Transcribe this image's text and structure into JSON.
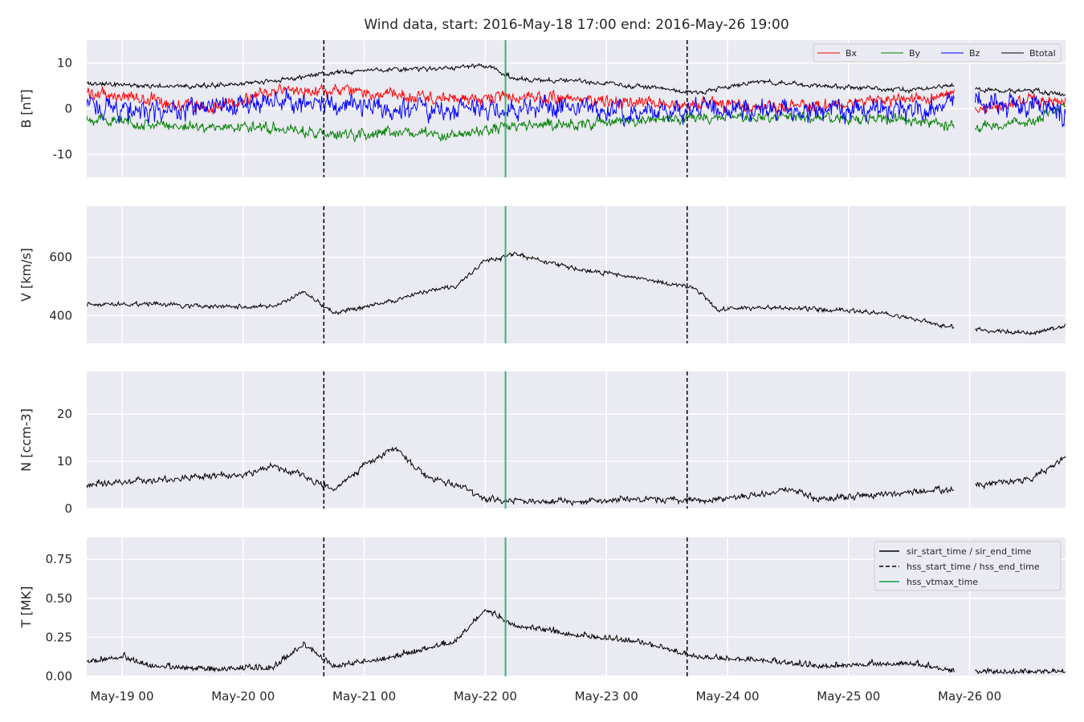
{
  "figure": {
    "title": "Wind data, start: 2016-May-18 17:00  end: 2016-May-26 19:00",
    "background": "#ffffff",
    "axes_facecolor": "#eaeaf2",
    "grid_color": "#ffffff"
  },
  "chart_data": [
    {
      "type": "line",
      "id": "b",
      "ylabel": "B [nT]",
      "ylim": [
        -15,
        15
      ],
      "yticks": [
        -10,
        0,
        10
      ],
      "xlim": [
        "2016-05-18T17:00",
        "2016-05-26T19:00"
      ],
      "grid": true,
      "gap": [
        "2016-05-25T21:00",
        "2016-05-26T01:00"
      ],
      "series": [
        {
          "name": "Bx",
          "color": "#ff0000",
          "base": [
            [
              "2016-05-18T17:00",
              3.5
            ],
            [
              "2016-05-19T06:00",
              2.0
            ],
            [
              "2016-05-19T18:00",
              0.0
            ],
            [
              "2016-05-20T06:00",
              4.0
            ],
            [
              "2016-05-20T18:00",
              4.0
            ],
            [
              "2016-05-21T06:00",
              3.0
            ],
            [
              "2016-05-21T18:00",
              2.0
            ],
            [
              "2016-05-22T06:00",
              2.5
            ],
            [
              "2016-05-22T18:00",
              2.0
            ],
            [
              "2016-05-23T06:00",
              1.5
            ],
            [
              "2016-05-23T18:00",
              1.0
            ],
            [
              "2016-05-24T06:00",
              0.5
            ],
            [
              "2016-05-24T18:00",
              0.5
            ],
            [
              "2016-05-25T12:00",
              2.0
            ],
            [
              "2016-05-25T21:00",
              3.0
            ],
            [
              "2016-05-26T01:00",
              -0.5
            ],
            [
              "2016-05-26T12:00",
              2.0
            ],
            [
              "2016-05-26T19:00",
              1.5
            ]
          ],
          "noise": 1.6
        },
        {
          "name": "By",
          "color": "#008000",
          "base": [
            [
              "2016-05-18T17:00",
              -2.0
            ],
            [
              "2016-05-19T06:00",
              -3.5
            ],
            [
              "2016-05-19T18:00",
              -4.0
            ],
            [
              "2016-05-20T06:00",
              -4.0
            ],
            [
              "2016-05-20T18:00",
              -6.0
            ],
            [
              "2016-05-21T06:00",
              -5.0
            ],
            [
              "2016-05-21T18:00",
              -6.0
            ],
            [
              "2016-05-22T06:00",
              -3.5
            ],
            [
              "2016-05-22T18:00",
              -3.5
            ],
            [
              "2016-05-23T06:00",
              -2.5
            ],
            [
              "2016-05-23T18:00",
              -2.0
            ],
            [
              "2016-05-24T06:00",
              -2.0
            ],
            [
              "2016-05-24T18:00",
              -2.0
            ],
            [
              "2016-05-25T12:00",
              -2.5
            ],
            [
              "2016-05-25T21:00",
              -3.5
            ],
            [
              "2016-05-26T01:00",
              -4.0
            ],
            [
              "2016-05-26T12:00",
              -3.0
            ],
            [
              "2016-05-26T19:00",
              1.0
            ]
          ],
          "noise": 1.4
        },
        {
          "name": "Bz",
          "color": "#0000ff",
          "base": [
            [
              "2016-05-18T17:00",
              1.0
            ],
            [
              "2016-05-19T06:00",
              -1.0
            ],
            [
              "2016-05-19T18:00",
              0.0
            ],
            [
              "2016-05-20T06:00",
              2.0
            ],
            [
              "2016-05-20T18:00",
              1.0
            ],
            [
              "2016-05-21T06:00",
              0.0
            ],
            [
              "2016-05-21T18:00",
              0.0
            ],
            [
              "2016-05-22T06:00",
              0.0
            ],
            [
              "2016-05-22T18:00",
              0.5
            ],
            [
              "2016-05-23T06:00",
              -1.0
            ],
            [
              "2016-05-23T18:00",
              0.0
            ],
            [
              "2016-05-24T06:00",
              0.0
            ],
            [
              "2016-05-24T18:00",
              -0.5
            ],
            [
              "2016-05-25T12:00",
              0.0
            ],
            [
              "2016-05-25T21:00",
              0.5
            ],
            [
              "2016-05-26T01:00",
              1.0
            ],
            [
              "2016-05-26T12:00",
              1.0
            ],
            [
              "2016-05-26T19:00",
              -1.0
            ]
          ],
          "noise": 2.8
        },
        {
          "name": "Btotal",
          "color": "#000000",
          "base": [
            [
              "2016-05-18T17:00",
              5.5
            ],
            [
              "2016-05-19T06:00",
              5.0
            ],
            [
              "2016-05-19T18:00",
              5.0
            ],
            [
              "2016-05-20T06:00",
              6.0
            ],
            [
              "2016-05-20T18:00",
              8.0
            ],
            [
              "2016-05-21T06:00",
              8.5
            ],
            [
              "2016-05-21T18:00",
              9.0
            ],
            [
              "2016-05-22T00:00",
              9.5
            ],
            [
              "2016-05-22T06:00",
              6.5
            ],
            [
              "2016-05-22T18:00",
              6.0
            ],
            [
              "2016-05-23T06:00",
              5.0
            ],
            [
              "2016-05-23T18:00",
              3.5
            ],
            [
              "2016-05-24T06:00",
              6.0
            ],
            [
              "2016-05-24T18:00",
              5.0
            ],
            [
              "2016-05-25T12:00",
              4.0
            ],
            [
              "2016-05-25T21:00",
              5.0
            ],
            [
              "2016-05-26T01:00",
              4.0
            ],
            [
              "2016-05-26T12:00",
              4.0
            ],
            [
              "2016-05-26T19:00",
              3.0
            ]
          ],
          "noise": 0.6
        }
      ],
      "legend": {
        "placement": "upper-right",
        "entries": [
          "Bx",
          "By",
          "Bz",
          "Btotal"
        ]
      }
    },
    {
      "type": "line",
      "id": "v",
      "ylabel": "V [km/s]",
      "ylim": [
        305,
        775
      ],
      "yticks": [
        400,
        600
      ],
      "grid": true,
      "gap": [
        "2016-05-25T21:00",
        "2016-05-26T01:00"
      ],
      "series": [
        {
          "name": "V",
          "color": "#000000",
          "base": [
            [
              "2016-05-18T17:00",
              440
            ],
            [
              "2016-05-19T06:00",
              440
            ],
            [
              "2016-05-19T18:00",
              430
            ],
            [
              "2016-05-20T06:00",
              430
            ],
            [
              "2016-05-20T12:00",
              480
            ],
            [
              "2016-05-20T18:00",
              410
            ],
            [
              "2016-05-21T00:00",
              430
            ],
            [
              "2016-05-21T06:00",
              450
            ],
            [
              "2016-05-21T12:00",
              485
            ],
            [
              "2016-05-21T18:00",
              495
            ],
            [
              "2016-05-22T00:00",
              590
            ],
            [
              "2016-05-22T06:00",
              610
            ],
            [
              "2016-05-22T12:00",
              585
            ],
            [
              "2016-05-22T18:00",
              560
            ],
            [
              "2016-05-23T06:00",
              530
            ],
            [
              "2016-05-23T18:00",
              490
            ],
            [
              "2016-05-23T22:00",
              420
            ],
            [
              "2016-05-24T06:00",
              430
            ],
            [
              "2016-05-24T18:00",
              420
            ],
            [
              "2016-05-25T06:00",
              410
            ],
            [
              "2016-05-25T12:00",
              390
            ],
            [
              "2016-05-25T21:00",
              360
            ],
            [
              "2016-05-26T01:00",
              350
            ],
            [
              "2016-05-26T12:00",
              340
            ],
            [
              "2016-05-26T19:00",
              365
            ]
          ],
          "noise": 9
        }
      ]
    },
    {
      "type": "line",
      "id": "n",
      "ylabel": "N [ccm-3]",
      "ylim": [
        0,
        29
      ],
      "yticks": [
        0,
        10,
        20
      ],
      "grid": true,
      "gap": [
        "2016-05-25T21:00",
        "2016-05-26T01:00"
      ],
      "series": [
        {
          "name": "N",
          "color": "#000000",
          "base": [
            [
              "2016-05-18T17:00",
              5
            ],
            [
              "2016-05-19T06:00",
              6
            ],
            [
              "2016-05-19T18:00",
              7
            ],
            [
              "2016-05-20T00:00",
              7
            ],
            [
              "2016-05-20T06:00",
              9
            ],
            [
              "2016-05-20T12:00",
              7
            ],
            [
              "2016-05-20T18:00",
              4
            ],
            [
              "2016-05-21T00:00",
              9
            ],
            [
              "2016-05-21T06:00",
              13
            ],
            [
              "2016-05-21T12:00",
              7
            ],
            [
              "2016-05-21T18:00",
              5
            ],
            [
              "2016-05-22T00:00",
              2
            ],
            [
              "2016-05-22T12:00",
              1.5
            ],
            [
              "2016-05-23T06:00",
              2
            ],
            [
              "2016-05-23T18:00",
              1.5
            ],
            [
              "2016-05-24T06:00",
              3
            ],
            [
              "2016-05-24T12:00",
              4
            ],
            [
              "2016-05-24T18:00",
              2
            ],
            [
              "2016-05-25T12:00",
              3.5
            ],
            [
              "2016-05-25T21:00",
              4
            ],
            [
              "2016-05-26T01:00",
              5
            ],
            [
              "2016-05-26T12:00",
              6
            ],
            [
              "2016-05-26T19:00",
              11
            ]
          ],
          "noise": 0.8
        }
      ]
    },
    {
      "type": "line",
      "id": "t",
      "ylabel": "T [MK]",
      "ylim": [
        0,
        0.89
      ],
      "yticks": [
        0.0,
        0.25,
        0.5,
        0.75
      ],
      "grid": true,
      "gap": [
        "2016-05-25T21:00",
        "2016-05-26T01:00"
      ],
      "series": [
        {
          "name": "T",
          "color": "#000000",
          "base": [
            [
              "2016-05-18T17:00",
              0.09
            ],
            [
              "2016-05-19T00:00",
              0.12
            ],
            [
              "2016-05-19T06:00",
              0.06
            ],
            [
              "2016-05-19T18:00",
              0.04
            ],
            [
              "2016-05-20T06:00",
              0.05
            ],
            [
              "2016-05-20T12:00",
              0.2
            ],
            [
              "2016-05-20T18:00",
              0.06
            ],
            [
              "2016-05-21T06:00",
              0.12
            ],
            [
              "2016-05-21T18:00",
              0.22
            ],
            [
              "2016-05-22T00:00",
              0.42
            ],
            [
              "2016-05-22T06:00",
              0.32
            ],
            [
              "2016-05-22T18:00",
              0.26
            ],
            [
              "2016-05-23T06:00",
              0.22
            ],
            [
              "2016-05-23T18:00",
              0.12
            ],
            [
              "2016-05-24T06:00",
              0.1
            ],
            [
              "2016-05-24T18:00",
              0.06
            ],
            [
              "2016-05-25T12:00",
              0.08
            ],
            [
              "2016-05-25T21:00",
              0.03
            ],
            [
              "2016-05-26T01:00",
              0.025
            ],
            [
              "2016-05-26T12:00",
              0.025
            ],
            [
              "2016-05-26T19:00",
              0.03
            ]
          ],
          "noise": 0.04
        }
      ],
      "legend": {
        "placement": "upper-right",
        "entries": [
          "sir_start_time / sir_end_time",
          "hss_start_time / hss_end_time",
          "hss_vtmax_time"
        ]
      }
    }
  ],
  "events": {
    "hss_start_time": "2016-05-20T16:00",
    "hss_end_time": "2016-05-23T16:00",
    "hss_vtmax_time": "2016-05-22T04:00",
    "dashed_color": "#000000",
    "vtmax_color": "#3cb371"
  },
  "xticks": {
    "values": [
      "2016-05-19T00:00",
      "2016-05-20T00:00",
      "2016-05-21T00:00",
      "2016-05-22T00:00",
      "2016-05-23T00:00",
      "2016-05-24T00:00",
      "2016-05-25T00:00",
      "2016-05-26T00:00"
    ],
    "labels": [
      "May-19 00",
      "May-20 00",
      "May-21 00",
      "May-22 00",
      "May-23 00",
      "May-24 00",
      "May-25 00",
      "May-26 00"
    ]
  }
}
